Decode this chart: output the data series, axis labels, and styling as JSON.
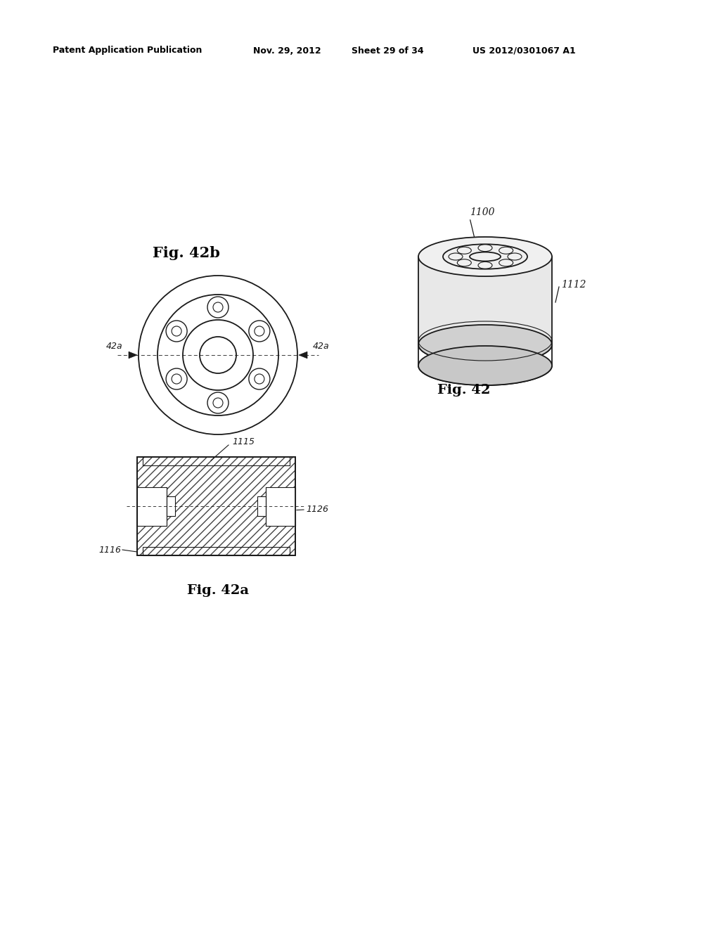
{
  "bg_color": "#ffffff",
  "header_text": "Patent Application Publication",
  "header_date": "Nov. 29, 2012",
  "header_sheet": "Sheet 29 of 34",
  "header_patent": "US 2012/0301067 A1",
  "fig42b_label": "Fig. 42b",
  "fig42a_label": "Fig. 42a",
  "fig42_label": "Fig. 42",
  "label_1100": "1100",
  "label_1112": "1112",
  "label_1116": "1116",
  "label_1126": "1126",
  "label_1115": "1115",
  "label_42a_left": "42a",
  "label_42a_right": "42a",
  "line_color": "#1a1a1a",
  "hatch_color": "#444444"
}
